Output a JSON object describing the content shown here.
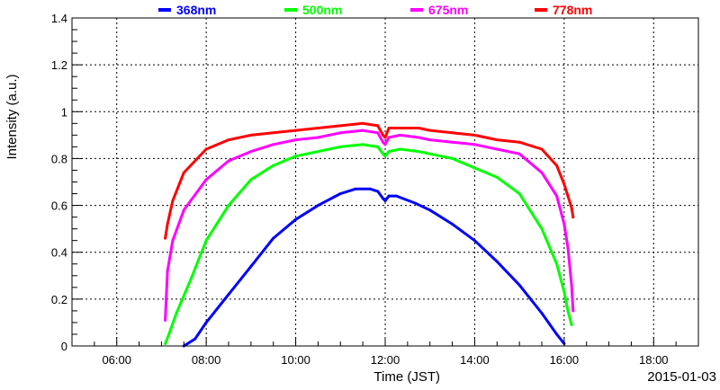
{
  "chart_data": {
    "type": "scatter",
    "title": "",
    "xlabel": "Time (JST)",
    "ylabel": "Intensity (a.u.)",
    "date_label": "2015-01-03",
    "xlim": [
      "05:00",
      "19:00"
    ],
    "ylim": [
      0,
      1.4
    ],
    "x_ticks": [
      "06:00",
      "08:00",
      "10:00",
      "12:00",
      "14:00",
      "16:00",
      "18:00"
    ],
    "y_ticks": [
      "0",
      "0.2",
      "0.4",
      "0.6",
      "0.8",
      "1",
      "1.2",
      "1.4"
    ],
    "grid": true,
    "legend_position": "top",
    "series": [
      {
        "name": "368nm",
        "color": "#0000ff",
        "points": [
          [
            "07:30",
            0.0
          ],
          [
            "07:45",
            0.03
          ],
          [
            "08:00",
            0.1
          ],
          [
            "08:30",
            0.22
          ],
          [
            "09:00",
            0.34
          ],
          [
            "09:30",
            0.46
          ],
          [
            "10:00",
            0.54
          ],
          [
            "10:30",
            0.6
          ],
          [
            "11:00",
            0.65
          ],
          [
            "11:20",
            0.67
          ],
          [
            "11:40",
            0.67
          ],
          [
            "11:50",
            0.66
          ],
          [
            "11:57",
            0.63
          ],
          [
            "12:00",
            0.62
          ],
          [
            "12:05",
            0.64
          ],
          [
            "12:15",
            0.64
          ],
          [
            "12:40",
            0.61
          ],
          [
            "13:00",
            0.58
          ],
          [
            "13:30",
            0.52
          ],
          [
            "14:00",
            0.45
          ],
          [
            "14:30",
            0.36
          ],
          [
            "15:00",
            0.26
          ],
          [
            "15:30",
            0.14
          ],
          [
            "15:50",
            0.05
          ],
          [
            "16:00",
            0.01
          ]
        ]
      },
      {
        "name": "500nm",
        "color": "#00ff00",
        "points": [
          [
            "07:05",
            0.01
          ],
          [
            "07:10",
            0.05
          ],
          [
            "07:20",
            0.14
          ],
          [
            "07:40",
            0.29
          ],
          [
            "08:00",
            0.45
          ],
          [
            "08:30",
            0.6
          ],
          [
            "09:00",
            0.71
          ],
          [
            "09:30",
            0.77
          ],
          [
            "10:00",
            0.81
          ],
          [
            "10:30",
            0.83
          ],
          [
            "11:00",
            0.85
          ],
          [
            "11:30",
            0.86
          ],
          [
            "11:50",
            0.85
          ],
          [
            "11:57",
            0.82
          ],
          [
            "12:00",
            0.81
          ],
          [
            "12:05",
            0.83
          ],
          [
            "12:20",
            0.84
          ],
          [
            "12:45",
            0.83
          ],
          [
            "13:00",
            0.82
          ],
          [
            "13:30",
            0.8
          ],
          [
            "14:00",
            0.76
          ],
          [
            "14:30",
            0.72
          ],
          [
            "15:00",
            0.65
          ],
          [
            "15:30",
            0.5
          ],
          [
            "15:50",
            0.35
          ],
          [
            "16:00",
            0.23
          ],
          [
            "16:05",
            0.15
          ],
          [
            "16:10",
            0.09
          ]
        ]
      },
      {
        "name": "675nm",
        "color": "#ff00ff",
        "points": [
          [
            "07:05",
            0.11
          ],
          [
            "07:08",
            0.32
          ],
          [
            "07:15",
            0.45
          ],
          [
            "07:30",
            0.58
          ],
          [
            "08:00",
            0.71
          ],
          [
            "08:30",
            0.79
          ],
          [
            "09:00",
            0.83
          ],
          [
            "09:30",
            0.86
          ],
          [
            "10:00",
            0.88
          ],
          [
            "10:30",
            0.89
          ],
          [
            "11:00",
            0.91
          ],
          [
            "11:30",
            0.92
          ],
          [
            "11:50",
            0.91
          ],
          [
            "11:57",
            0.87
          ],
          [
            "12:00",
            0.86
          ],
          [
            "12:05",
            0.89
          ],
          [
            "12:20",
            0.9
          ],
          [
            "12:45",
            0.89
          ],
          [
            "13:00",
            0.88
          ],
          [
            "13:30",
            0.87
          ],
          [
            "14:00",
            0.86
          ],
          [
            "14:30",
            0.84
          ],
          [
            "15:00",
            0.82
          ],
          [
            "15:30",
            0.74
          ],
          [
            "15:50",
            0.64
          ],
          [
            "16:00",
            0.52
          ],
          [
            "16:05",
            0.42
          ],
          [
            "16:10",
            0.26
          ],
          [
            "16:12",
            0.15
          ]
        ]
      },
      {
        "name": "778nm",
        "color": "#ff0000",
        "points": [
          [
            "07:05",
            0.46
          ],
          [
            "07:08",
            0.52
          ],
          [
            "07:15",
            0.62
          ],
          [
            "07:30",
            0.74
          ],
          [
            "08:00",
            0.84
          ],
          [
            "08:30",
            0.88
          ],
          [
            "09:00",
            0.9
          ],
          [
            "09:30",
            0.91
          ],
          [
            "10:00",
            0.92
          ],
          [
            "10:30",
            0.93
          ],
          [
            "11:00",
            0.94
          ],
          [
            "11:30",
            0.95
          ],
          [
            "11:50",
            0.94
          ],
          [
            "11:57",
            0.9
          ],
          [
            "12:00",
            0.89
          ],
          [
            "12:05",
            0.93
          ],
          [
            "12:20",
            0.93
          ],
          [
            "12:45",
            0.93
          ],
          [
            "13:00",
            0.92
          ],
          [
            "13:30",
            0.91
          ],
          [
            "14:00",
            0.9
          ],
          [
            "14:30",
            0.88
          ],
          [
            "15:00",
            0.87
          ],
          [
            "15:30",
            0.84
          ],
          [
            "15:50",
            0.77
          ],
          [
            "16:00",
            0.69
          ],
          [
            "16:05",
            0.64
          ],
          [
            "16:10",
            0.59
          ],
          [
            "16:12",
            0.55
          ]
        ]
      }
    ]
  }
}
